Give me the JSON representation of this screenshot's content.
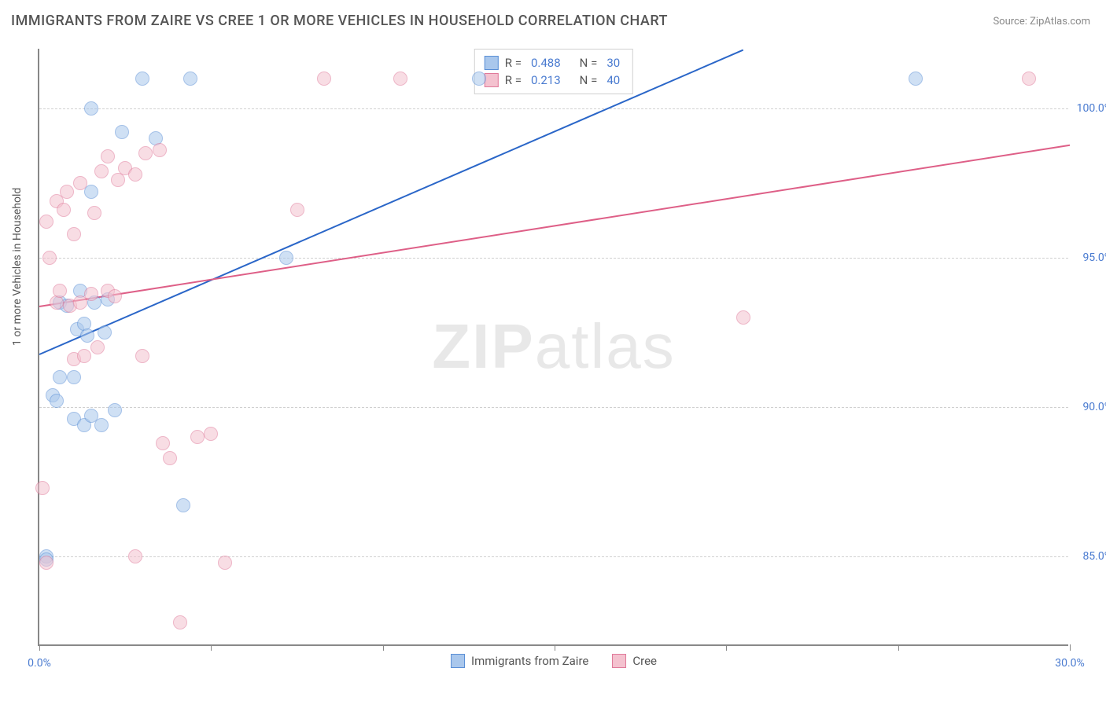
{
  "title": "IMMIGRANTS FROM ZAIRE VS CREE 1 OR MORE VEHICLES IN HOUSEHOLD CORRELATION CHART",
  "source_label": "Source:",
  "source_name": "ZipAtlas.com",
  "y_axis_label": "1 or more Vehicles in Household",
  "watermark": "ZIPatlas",
  "chart": {
    "type": "scatter",
    "xlim": [
      0,
      30
    ],
    "ylim": [
      82,
      102
    ],
    "x_ticks": [
      0,
      5,
      10,
      15,
      20,
      25,
      30
    ],
    "x_tick_labels": [
      "0.0%",
      "",
      "",
      "",
      "",
      "",
      "30.0%"
    ],
    "y_gridlines": [
      85,
      90,
      95,
      100
    ],
    "y_tick_labels": [
      "85.0%",
      "90.0%",
      "95.0%",
      "100.0%"
    ],
    "background_color": "#ffffff",
    "grid_color": "#d0d0d0",
    "axis_color": "#888888",
    "tick_label_color": "#4a7bd0",
    "point_radius": 9,
    "point_opacity": 0.55,
    "series": [
      {
        "name": "Immigrants from Zaire",
        "color_fill": "#a9c7ec",
        "color_stroke": "#5a8fd6",
        "R": "0.488",
        "N": "30",
        "trend": {
          "x1": 0,
          "y1": 91.8,
          "x2": 20.5,
          "y2": 102,
          "color": "#2a66c8",
          "width": 2
        },
        "points": [
          [
            0.2,
            85.0
          ],
          [
            0.2,
            84.9
          ],
          [
            0.4,
            90.4
          ],
          [
            0.5,
            90.2
          ],
          [
            0.6,
            93.5
          ],
          [
            0.6,
            91.0
          ],
          [
            0.8,
            93.4
          ],
          [
            1.0,
            89.6
          ],
          [
            1.0,
            91.0
          ],
          [
            1.1,
            92.6
          ],
          [
            1.2,
            93.9
          ],
          [
            1.3,
            89.4
          ],
          [
            1.3,
            92.8
          ],
          [
            1.4,
            92.4
          ],
          [
            1.5,
            89.7
          ],
          [
            1.5,
            97.2
          ],
          [
            1.5,
            100.0
          ],
          [
            1.6,
            93.5
          ],
          [
            1.8,
            89.4
          ],
          [
            1.9,
            92.5
          ],
          [
            2.0,
            93.6
          ],
          [
            2.2,
            89.9
          ],
          [
            2.4,
            99.2
          ],
          [
            3.0,
            101.0
          ],
          [
            3.4,
            99.0
          ],
          [
            4.2,
            86.7
          ],
          [
            4.4,
            101.0
          ],
          [
            7.2,
            95.0
          ],
          [
            12.8,
            101.0
          ],
          [
            25.5,
            101.0
          ]
        ]
      },
      {
        "name": "Cree",
        "color_fill": "#f4c2cf",
        "color_stroke": "#e07a9a",
        "R": "0.213",
        "N": "40",
        "trend": {
          "x1": 0,
          "y1": 93.4,
          "x2": 30,
          "y2": 98.8,
          "color": "#de5f87",
          "width": 2
        },
        "points": [
          [
            0.1,
            87.3
          ],
          [
            0.2,
            84.8
          ],
          [
            0.2,
            96.2
          ],
          [
            0.3,
            95.0
          ],
          [
            0.5,
            93.5
          ],
          [
            0.5,
            96.9
          ],
          [
            0.6,
            93.9
          ],
          [
            0.7,
            96.6
          ],
          [
            0.8,
            97.2
          ],
          [
            0.9,
            93.4
          ],
          [
            1.0,
            91.6
          ],
          [
            1.0,
            95.8
          ],
          [
            1.2,
            93.5
          ],
          [
            1.2,
            97.5
          ],
          [
            1.3,
            91.7
          ],
          [
            1.5,
            93.8
          ],
          [
            1.6,
            96.5
          ],
          [
            1.7,
            92.0
          ],
          [
            1.8,
            97.9
          ],
          [
            2.0,
            93.9
          ],
          [
            2.0,
            98.4
          ],
          [
            2.2,
            93.7
          ],
          [
            2.3,
            97.6
          ],
          [
            2.5,
            98.0
          ],
          [
            2.8,
            97.8
          ],
          [
            3.0,
            91.7
          ],
          [
            3.1,
            98.5
          ],
          [
            3.5,
            98.6
          ],
          [
            3.6,
            88.8
          ],
          [
            3.8,
            88.3
          ],
          [
            4.1,
            82.8
          ],
          [
            4.6,
            89.0
          ],
          [
            5.0,
            89.1
          ],
          [
            5.4,
            84.8
          ],
          [
            7.5,
            96.6
          ],
          [
            8.3,
            101.0
          ],
          [
            10.5,
            101.0
          ],
          [
            20.5,
            93.0
          ],
          [
            28.8,
            101.0
          ],
          [
            2.8,
            85.0
          ]
        ]
      }
    ]
  },
  "legend_inside": {
    "rows": [
      {
        "swatch_fill": "#a9c7ec",
        "swatch_stroke": "#5a8fd6",
        "r_label": "R =",
        "r_val": "0.488",
        "n_label": "N =",
        "n_val": "30"
      },
      {
        "swatch_fill": "#f4c2cf",
        "swatch_stroke": "#e07a9a",
        "r_label": "R =",
        "r_val": "0.213",
        "n_label": "N =",
        "n_val": "40"
      }
    ]
  },
  "legend_bottom": [
    {
      "swatch_fill": "#a9c7ec",
      "swatch_stroke": "#5a8fd6",
      "label": "Immigrants from Zaire"
    },
    {
      "swatch_fill": "#f4c2cf",
      "swatch_stroke": "#e07a9a",
      "label": "Cree"
    }
  ]
}
